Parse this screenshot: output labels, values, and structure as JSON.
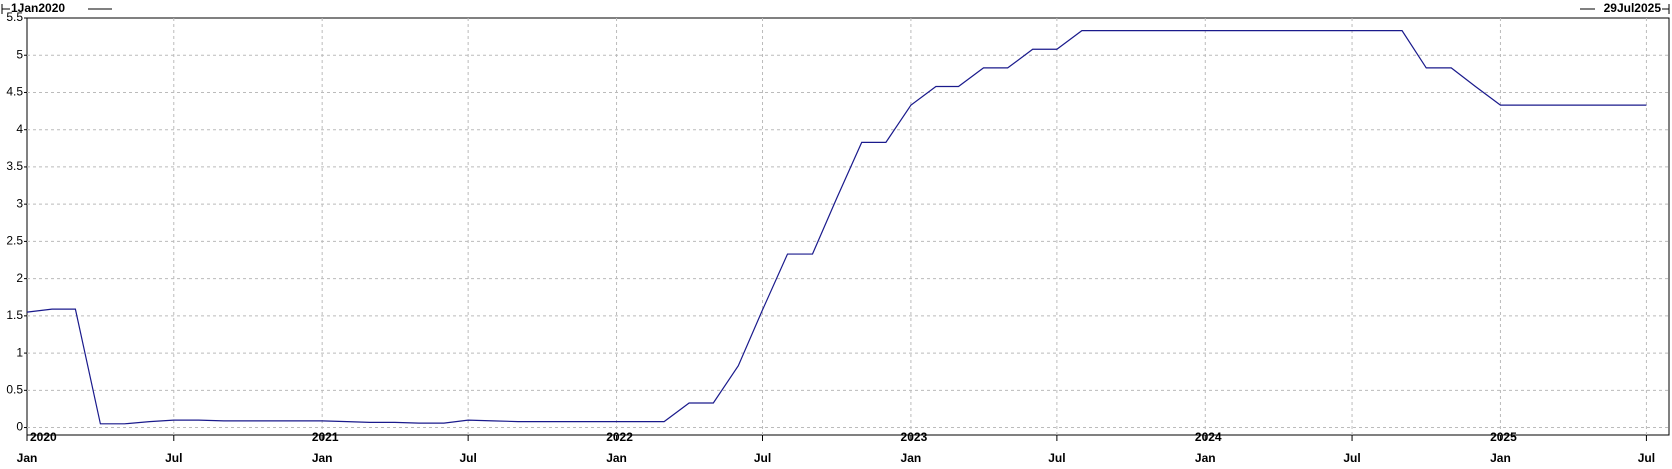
{
  "chart_data": {
    "type": "line",
    "range_start": "1Jan2020",
    "range_end": "29Jul2025",
    "x": [
      "2020-01",
      "2020-02",
      "2020-03",
      "2020-04",
      "2020-05",
      "2020-06",
      "2020-07",
      "2020-08",
      "2020-09",
      "2020-10",
      "2020-11",
      "2020-12",
      "2021-01",
      "2021-02",
      "2021-03",
      "2021-04",
      "2021-05",
      "2021-06",
      "2021-07",
      "2021-08",
      "2021-09",
      "2021-10",
      "2021-11",
      "2021-12",
      "2022-01",
      "2022-02",
      "2022-03",
      "2022-04",
      "2022-05",
      "2022-06",
      "2022-07",
      "2022-08",
      "2022-09",
      "2022-10",
      "2022-11",
      "2022-12",
      "2023-01",
      "2023-02",
      "2023-03",
      "2023-04",
      "2023-05",
      "2023-06",
      "2023-07",
      "2023-08",
      "2023-09",
      "2023-10",
      "2023-11",
      "2023-12",
      "2024-01",
      "2024-02",
      "2024-03",
      "2024-04",
      "2024-05",
      "2024-06",
      "2024-07",
      "2024-08",
      "2024-09",
      "2024-10",
      "2024-11",
      "2024-12",
      "2025-01",
      "2025-02",
      "2025-03",
      "2025-04",
      "2025-05",
      "2025-06",
      "2025-07"
    ],
    "series": [
      {
        "color": "#1a1a8c",
        "values": [
          1.55,
          1.59,
          1.59,
          0.05,
          0.05,
          0.08,
          0.1,
          0.1,
          0.09,
          0.09,
          0.09,
          0.09,
          0.09,
          0.08,
          0.07,
          0.07,
          0.06,
          0.06,
          0.1,
          0.09,
          0.08,
          0.08,
          0.08,
          0.08,
          0.08,
          0.08,
          0.08,
          0.33,
          0.33,
          0.83,
          1.58,
          2.33,
          2.33,
          3.08,
          3.83,
          3.83,
          4.33,
          4.58,
          4.58,
          4.83,
          4.83,
          5.08,
          5.08,
          5.33,
          5.33,
          5.33,
          5.33,
          5.33,
          5.33,
          5.33,
          5.33,
          5.33,
          5.33,
          5.33,
          5.33,
          5.33,
          5.33,
          4.83,
          4.83,
          4.58,
          4.33,
          4.33,
          4.33,
          4.33,
          4.33,
          4.33,
          4.33
        ]
      }
    ],
    "xlim": [
      "2020-01-01",
      "2025-07-29"
    ],
    "xticks": [
      {
        "value": "2020-01",
        "label": "Jan"
      },
      {
        "value": "2020-07",
        "label": "Jul"
      },
      {
        "value": "2021-01",
        "label": "Jan"
      },
      {
        "value": "2021-07",
        "label": "Jul"
      },
      {
        "value": "2022-01",
        "label": "Jan"
      },
      {
        "value": "2022-07",
        "label": "Jul"
      },
      {
        "value": "2023-01",
        "label": "Jan"
      },
      {
        "value": "2023-07",
        "label": "Jul"
      },
      {
        "value": "2024-01",
        "label": "Jan"
      },
      {
        "value": "2024-07",
        "label": "Jul"
      },
      {
        "value": "2025-01",
        "label": "Jan"
      },
      {
        "value": "2025-07",
        "label": "Jul"
      }
    ],
    "year_ticks": [
      {
        "value": "2020-01",
        "label": "2020"
      },
      {
        "value": "2021-01",
        "label": "2021"
      },
      {
        "value": "2022-01",
        "label": "2022"
      },
      {
        "value": "2023-01",
        "label": "2023"
      },
      {
        "value": "2024-01",
        "label": "2024"
      },
      {
        "value": "2025-01",
        "label": "2025"
      }
    ],
    "ylim": [
      -0.1,
      5.5
    ],
    "yticks": [
      0,
      0.5,
      1,
      1.5,
      2,
      2.5,
      3,
      3.5,
      4,
      4.5,
      5,
      5.5
    ],
    "grid": true
  }
}
